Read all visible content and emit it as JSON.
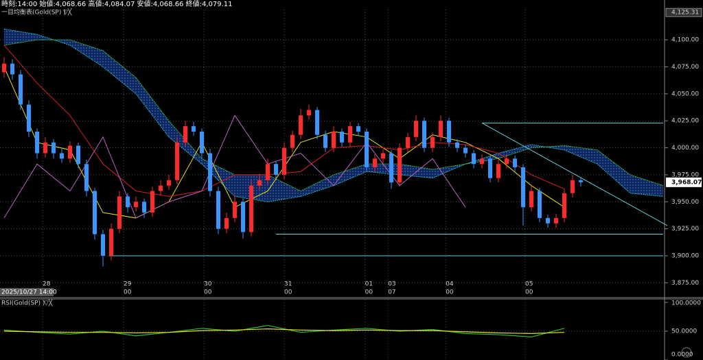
{
  "chart_data": {
    "type": "candlestick",
    "header": "時刻:14:00 始値:4,068.66 高値:4,084.07 安値:4,068.66 終値:4,079.11",
    "indicator_label": "一目均衡表(Gold(SP) )",
    "up_color": "#ff2a2a",
    "down_color": "#3a96ff",
    "open": [
      4070,
      4078,
      4068,
      4040,
      4015,
      3995,
      4005,
      3995,
      3990,
      4002,
      3985,
      3960,
      3920,
      3900,
      3925,
      3955,
      3945,
      3950,
      3940,
      3960,
      3965,
      3970,
      4005,
      4020,
      4015,
      3995,
      3960,
      3925,
      3935,
      3950,
      3922,
      3965,
      3970,
      3985,
      3975,
      4000,
      4012,
      4030,
      4035,
      4012,
      4000,
      4015,
      4005,
      4020,
      4015,
      3982,
      3990,
      3995,
      3968,
      4000,
      4010,
      4025,
      4000,
      4010,
      4025,
      4005,
      4000,
      3995,
      3985,
      3990,
      3972,
      3985,
      3990,
      3982,
      3945,
      3960,
      3935,
      3930,
      3935,
      3958,
      3970
    ],
    "high": [
      4084,
      4082,
      4072,
      4044,
      4018,
      4010,
      4008,
      3999,
      4006,
      4005,
      3989,
      3963,
      3924,
      3930,
      3960,
      3958,
      3955,
      3953,
      3964,
      3970,
      3975,
      4010,
      4025,
      4024,
      4018,
      3999,
      3964,
      3940,
      3956,
      3953,
      3970,
      3976,
      3990,
      3988,
      4005,
      4016,
      4036,
      4040,
      4038,
      4016,
      4020,
      4018,
      4024,
      4023,
      4018,
      3994,
      3999,
      3998,
      4004,
      4014,
      4030,
      4028,
      4014,
      4030,
      4028,
      4008,
      4003,
      3998,
      3994,
      3993,
      3989,
      3994,
      3993,
      3985,
      3966,
      3963,
      3938,
      3939,
      3962,
      3975,
      3973
    ],
    "low": [
      4065,
      4063,
      4035,
      4010,
      3990,
      3991,
      3990,
      3986,
      3986,
      3981,
      3955,
      3915,
      3890,
      3896,
      3921,
      3940,
      3941,
      3935,
      3936,
      3956,
      3961,
      3966,
      4001,
      4011,
      3990,
      3955,
      3920,
      3921,
      3931,
      3916,
      3918,
      3961,
      3966,
      3971,
      3971,
      3996,
      4008,
      4026,
      4008,
      3996,
      3996,
      4001,
      4001,
      4011,
      3978,
      3978,
      3986,
      3962,
      3964,
      3996,
      4006,
      3996,
      3996,
      4006,
      4001,
      3996,
      3991,
      3981,
      3981,
      3968,
      3968,
      3981,
      3978,
      3928,
      3941,
      3931,
      3926,
      3926,
      3931,
      3954,
      3964
    ],
    "close": [
      4078,
      4068,
      4040,
      4015,
      3995,
      4005,
      3995,
      3990,
      4002,
      3985,
      3960,
      3920,
      3900,
      3925,
      3955,
      3945,
      3950,
      3940,
      3960,
      3965,
      3970,
      4005,
      4020,
      4015,
      3995,
      3960,
      3925,
      3935,
      3950,
      3922,
      3965,
      3970,
      3985,
      3975,
      4000,
      4012,
      4030,
      4035,
      4012,
      4000,
      4015,
      4005,
      4020,
      4015,
      3982,
      3990,
      3995,
      3968,
      4000,
      4010,
      4025,
      4000,
      4010,
      4025,
      4005,
      4000,
      3995,
      3985,
      3990,
      3972,
      3985,
      3990,
      3982,
      3945,
      3960,
      3935,
      3930,
      3935,
      3958,
      3970,
      3968.07
    ],
    "ylim": [
      3867,
      4128
    ],
    "yticks": [
      {
        "value": 3875,
        "label": "3,875.00"
      },
      {
        "value": 3900,
        "label": "3,900.00"
      },
      {
        "value": 3925,
        "label": "3,925.00"
      },
      {
        "value": 3950,
        "label": "3,950.00"
      },
      {
        "value": 3975,
        "label": "3,975.00"
      },
      {
        "value": 4000,
        "label": "4,000.00"
      },
      {
        "value": 4025,
        "label": "4,025.00"
      },
      {
        "value": 4050,
        "label": "4,050.00"
      },
      {
        "value": 4075,
        "label": "4,075.00"
      },
      {
        "value": 4100,
        "label": "4,100.00"
      }
    ],
    "top_price": {
      "value": 4125.31,
      "label": "4,125.31"
    },
    "last_price": {
      "value": 3968.07,
      "label": "3,968.07"
    },
    "xticks": [
      {
        "value": 4.67,
        "label": "28"
      },
      {
        "value": 14.5,
        "label": "29"
      },
      {
        "value": 24.25,
        "label": "30"
      },
      {
        "value": 34,
        "label": "31"
      },
      {
        "value": 43.8,
        "label": "01"
      },
      {
        "value": 46.6,
        "label": "03"
      },
      {
        "value": 53.6,
        "label": "04"
      },
      {
        "value": 63.25,
        "label": "05"
      }
    ],
    "xsublabels": [
      null,
      "00",
      "00",
      "00",
      "00",
      "07",
      "00",
      "00"
    ],
    "date_stamp": "2025/10/27 14:00",
    "grid": true,
    "line_x": [
      0,
      4,
      8,
      12,
      16,
      20,
      24,
      28,
      32,
      36,
      40,
      44,
      48,
      52,
      56,
      60,
      64,
      68,
      72,
      76,
      80
    ],
    "cloud_color": "#1a3d8f",
    "series": [
      {
        "color": "#40c040",
        "values": [
          4095,
          4100,
          4100,
          4090,
          4065,
          4025,
          3990,
          3975,
          3975,
          3960,
          3975,
          3985,
          3985,
          3980,
          3985,
          3990,
          4000,
          4002,
          3998,
          3975,
          3965
        ]
      },
      {
        "color": "#2bb6c0",
        "values": [
          4110,
          4105,
          4095,
          4075,
          4050,
          4010,
          3985,
          3955,
          3950,
          3955,
          3965,
          3978,
          3975,
          3972,
          3985,
          3995,
          4003,
          3998,
          3985,
          3958,
          3955
        ]
      },
      {
        "color": "#e8e020",
        "values": [
          4075,
          4005,
          3998,
          3940,
          3935,
          3950,
          4005,
          3945,
          3960,
          4005,
          4015,
          4010,
          3990,
          4012,
          4005,
          3990,
          3965,
          3945,
          null,
          null,
          null
        ]
      },
      {
        "color": "#d82020",
        "values": [
          4095,
          4060,
          4030,
          3985,
          3960,
          3955,
          3960,
          3975,
          3975,
          3978,
          4000,
          4002,
          3998,
          4005,
          4003,
          3995,
          3975,
          3962,
          null,
          null,
          null
        ]
      },
      {
        "color": "#c060c8",
        "values": [
          3935,
          3985,
          3960,
          4010,
          3935,
          3950,
          3960,
          4030,
          3985,
          3995,
          3965,
          4005,
          3965,
          3990,
          3945,
          null,
          null,
          null,
          null,
          null,
          null
        ]
      }
    ],
    "level_color": "#5ecfd8",
    "levels": [
      {
        "from": [
          58,
          4023
        ],
        "to": [
          80,
          4023
        ]
      },
      {
        "from": [
          33,
          3920
        ],
        "to": [
          80,
          3920
        ]
      },
      {
        "from": [
          12.7,
          3900
        ],
        "to": [
          80,
          3900
        ]
      },
      {
        "from": [
          58,
          4023
        ],
        "to": [
          80.5,
          3928
        ]
      }
    ],
    "rsi": {
      "title": "RSI(Gold(SP) )",
      "ylim": [
        0,
        100
      ],
      "yticks": [
        {
          "value": 0,
          "label": "0.0000"
        },
        {
          "value": 50,
          "label": "50.0000"
        },
        {
          "value": 100,
          "label": "100.0000"
        }
      ],
      "x": [
        0,
        4,
        8,
        12,
        16,
        20,
        24,
        28,
        32,
        36,
        40,
        44,
        48,
        52,
        56,
        60,
        64,
        68
      ],
      "series": [
        {
          "color": "#30c030",
          "values": [
            52,
            48,
            45,
            50,
            42,
            48,
            55,
            50,
            60,
            48,
            52,
            55,
            50,
            53,
            46,
            44,
            40,
            55
          ]
        },
        {
          "color": "#e8e020",
          "values": [
            50,
            49,
            48,
            48,
            47,
            48,
            51,
            52,
            54,
            52,
            51,
            52,
            51,
            51,
            49,
            47,
            46,
            48
          ]
        }
      ]
    }
  }
}
